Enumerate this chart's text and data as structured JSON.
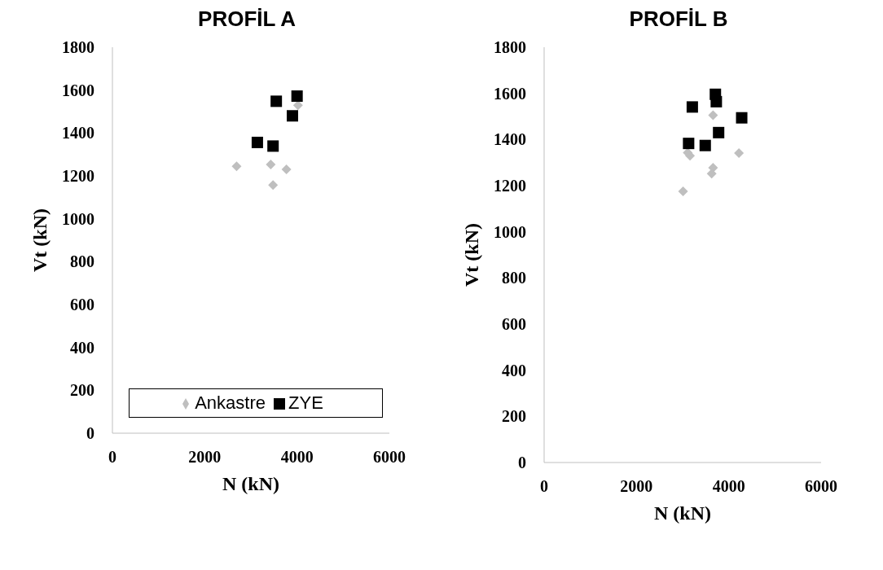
{
  "chart_data": [
    {
      "type": "scatter",
      "title": "PROFİL A",
      "xlabel": "N (kN)",
      "ylabel": "Vt (kN)",
      "xlim": [
        0,
        6000
      ],
      "xticks": [
        0,
        2000,
        4000,
        6000
      ],
      "ylim": [
        0,
        1800
      ],
      "yticks": [
        0,
        200,
        400,
        600,
        800,
        1000,
        1200,
        1400,
        1600,
        1800
      ],
      "grid": false,
      "legend": "bottom",
      "series": [
        {
          "name": "Ankastre",
          "color": "#bfbfbf",
          "marker": "diamond",
          "x": [
            2690,
            3430,
            3770,
            3480,
            4020
          ],
          "values": [
            1245,
            1253,
            1230,
            1157,
            1529
          ]
        },
        {
          "name": "ZYE",
          "color": "#000000",
          "marker": "square",
          "x": [
            3550,
            4000,
            3900,
            3140,
            3480
          ],
          "values": [
            1548,
            1572,
            1480,
            1356,
            1339
          ]
        }
      ]
    },
    {
      "type": "scatter",
      "title": "PROFİL B",
      "xlabel": "N (kN)",
      "ylabel": "Vt (kN)",
      "xlim": [
        0,
        6000
      ],
      "xticks": [
        0,
        2000,
        4000,
        6000
      ],
      "ylim": [
        0,
        1800
      ],
      "yticks": [
        0,
        200,
        400,
        600,
        800,
        1000,
        1200,
        1400,
        1600,
        1800
      ],
      "grid": false,
      "legend": false,
      "series": [
        {
          "color": "#bfbfbf",
          "marker": "diamond",
          "x": [
            3660,
            3110,
            3160,
            4220,
            3660,
            3630,
            3010
          ],
          "values": [
            1505,
            1343,
            1330,
            1341,
            1278,
            1252,
            1175
          ]
        },
        {
          "color": "#000000",
          "marker": "square",
          "x": [
            3710,
            3730,
            3210,
            4280,
            3780,
            3130,
            3490
          ],
          "values": [
            1596,
            1564,
            1541,
            1494,
            1430,
            1383,
            1374
          ]
        }
      ]
    }
  ]
}
